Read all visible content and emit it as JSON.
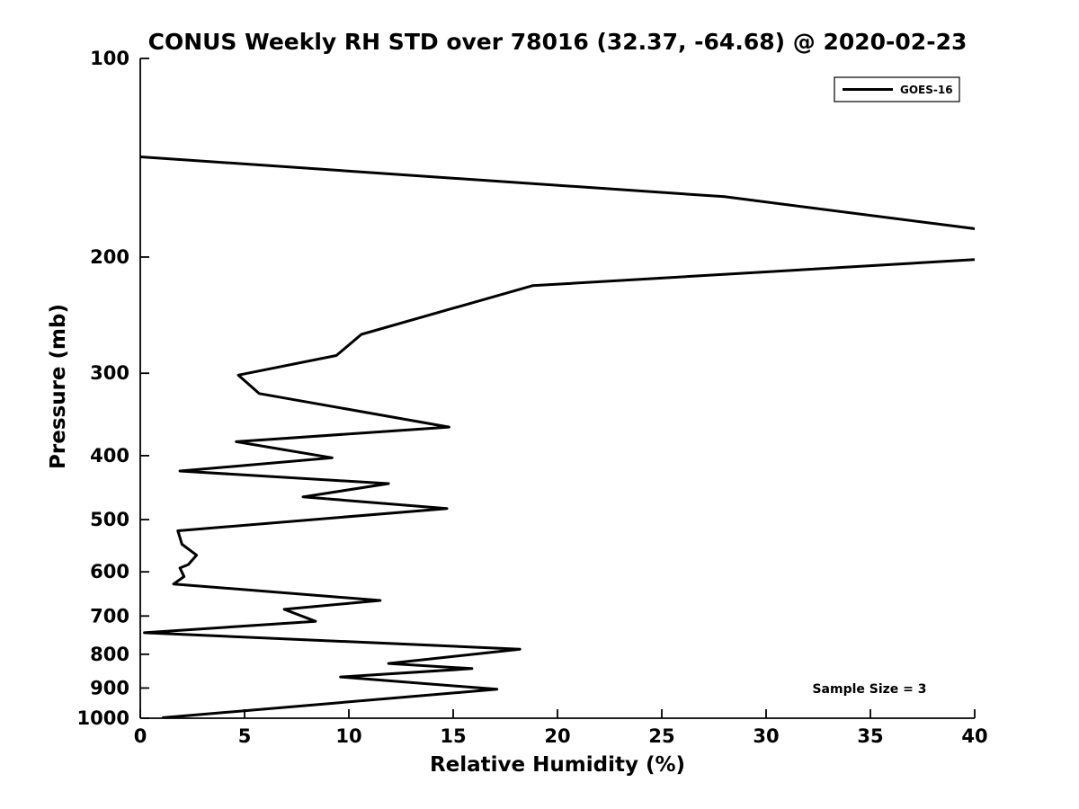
{
  "chart_data": {
    "type": "line",
    "title": "CONUS Weekly RH STD over 78016 (32.37, -64.68) @ 2020-02-23",
    "xlabel": "Relative Humidity (%)",
    "ylabel": "Pressure (mb)",
    "xlim": [
      0,
      40
    ],
    "ylim": [
      100,
      1000
    ],
    "yscale": "log",
    "y_inverted": true,
    "grid": false,
    "line_color": "#000000",
    "background_color": "#ffffff",
    "xticks": [
      0,
      5,
      10,
      15,
      20,
      25,
      30,
      35,
      40
    ],
    "yticks": [
      100,
      200,
      300,
      400,
      500,
      600,
      700,
      800,
      900,
      1000
    ],
    "legend": {
      "position": "upper-right",
      "entries": [
        {
          "label": "GOES-16",
          "color": "#000000"
        }
      ]
    },
    "annotation": "Sample Size = 3",
    "series": [
      {
        "name": "GOES-16",
        "color": "#000000",
        "x_is": "relative_humidity_std_percent",
        "y_is": "pressure_mb",
        "points": [
          [
            0.0,
            141
          ],
          [
            28.0,
            162
          ],
          [
            47.9,
            195
          ],
          [
            18.8,
            221
          ],
          [
            10.6,
            262
          ],
          [
            9.4,
            282
          ],
          [
            4.7,
            302
          ],
          [
            5.7,
            322
          ],
          [
            14.8,
            362
          ],
          [
            4.6,
            381
          ],
          [
            9.2,
            403
          ],
          [
            1.9,
            422
          ],
          [
            11.9,
            441
          ],
          [
            7.8,
            462
          ],
          [
            14.7,
            481
          ],
          [
            1.8,
            520
          ],
          [
            2.0,
            545
          ],
          [
            2.7,
            566
          ],
          [
            2.3,
            585
          ],
          [
            1.9,
            592
          ],
          [
            2.1,
            610
          ],
          [
            1.6,
            626
          ],
          [
            11.5,
            663
          ],
          [
            6.9,
            684
          ],
          [
            8.4,
            713
          ],
          [
            0.2,
            742
          ],
          [
            18.2,
            786
          ],
          [
            11.9,
            826
          ],
          [
            15.9,
            841
          ],
          [
            9.6,
            866
          ],
          [
            17.1,
            904
          ],
          [
            1.1,
            998
          ]
        ],
        "note": "Point at RH 47.9 lies beyond xlim=40 and is clipped at the right edge of the axes, as in the source plot."
      }
    ]
  }
}
